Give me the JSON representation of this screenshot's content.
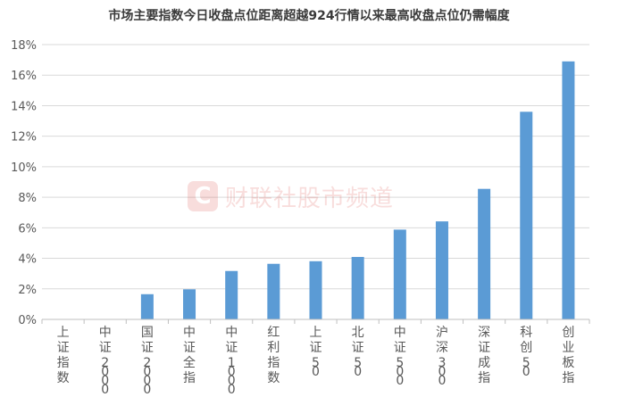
{
  "chart_data": {
    "type": "bar",
    "title": "市场主要指数今日收盘点位距离超越924行情以来最高收盘点位仍需幅度",
    "xlabel": "",
    "ylabel": "",
    "categories": [
      "上证指数",
      "中证2000",
      "国证2000",
      "中证全指",
      "中证1000",
      "红利指数",
      "上证50",
      "北证50",
      "中证500",
      "沪深300",
      "深证成指",
      "科创50",
      "创业板指"
    ],
    "values": [
      0.0,
      0.0,
      1.65,
      1.97,
      3.17,
      3.64,
      3.81,
      4.09,
      5.88,
      6.42,
      8.55,
      13.6,
      16.9
    ],
    "ylim": [
      0,
      18
    ],
    "yticks": [
      0,
      2,
      4,
      6,
      8,
      10,
      12,
      14,
      16,
      18
    ],
    "ytick_suffix": "%",
    "grid": true,
    "legend": "none",
    "colors": {
      "bar": "#5b9bd5",
      "grid": "#d9d9d9",
      "axis": "#bfbfbf",
      "text": "#595959"
    }
  },
  "watermark": {
    "logo_letter": "C",
    "text": "财联社股市频道"
  }
}
